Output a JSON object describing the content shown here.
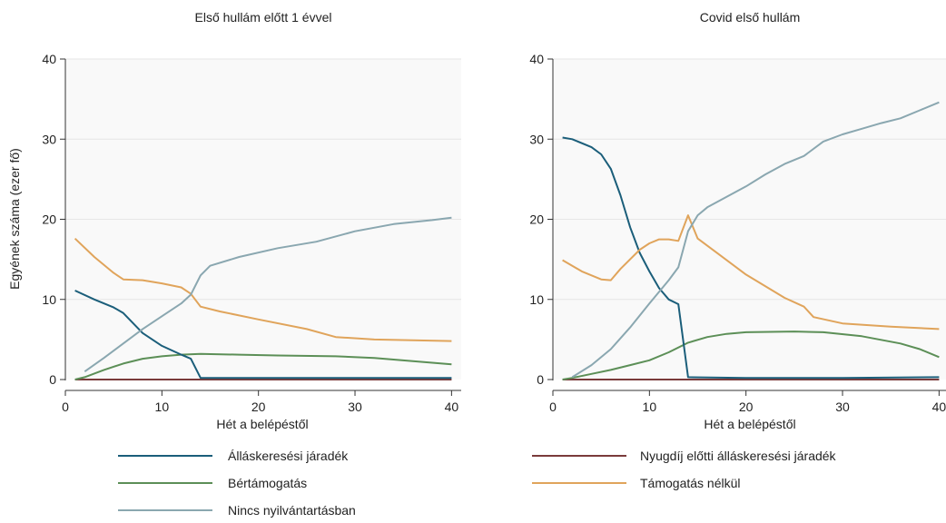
{
  "y_axis_title": "Egyének száma (ezer fő)",
  "legend": [
    {
      "key": "allaskeresesi",
      "label": "Álláskeresési járadék",
      "color": "#1b5e7a"
    },
    {
      "key": "nyugdij",
      "label": "Nyugdíj előtti álláskeresési járadék",
      "color": "#7a3b3b"
    },
    {
      "key": "bertamogatas",
      "label": "Bértámogatás",
      "color": "#5c8f57"
    },
    {
      "key": "tamogatas_nelkul",
      "label": "Támogatás nélkül",
      "color": "#e0a45b"
    },
    {
      "key": "nincs",
      "label": "Nincs nyilvántartásban",
      "color": "#8aa7b0"
    }
  ],
  "chart_data": [
    {
      "type": "line",
      "title": "Első hullám előtt 1 évvel",
      "xlabel": "Hét a belépéstől",
      "ylabel": "Egyének száma (ezer fő)",
      "xlim": [
        0,
        41
      ],
      "ylim": [
        0,
        40
      ],
      "xticks": [
        0,
        10,
        20,
        30,
        40
      ],
      "yticks": [
        0,
        10,
        20,
        30,
        40
      ],
      "grid": true,
      "series": [
        {
          "name": "Álláskeresési járadék",
          "color": "#1b5e7a",
          "x": [
            1,
            3,
            5,
            6,
            8,
            10,
            12,
            13,
            14,
            20,
            30,
            40
          ],
          "y": [
            11.1,
            10.0,
            9.0,
            8.3,
            5.8,
            4.2,
            3.1,
            2.6,
            0.2,
            0.2,
            0.2,
            0.2
          ]
        },
        {
          "name": "Nyugdíj előtti álláskeresési járadék",
          "color": "#7a3b3b",
          "x": [
            1,
            10,
            20,
            30,
            40
          ],
          "y": [
            0.0,
            0.0,
            0.0,
            0.0,
            0.0
          ]
        },
        {
          "name": "Bértámogatás",
          "color": "#5c8f57",
          "x": [
            1,
            2,
            4,
            6,
            8,
            10,
            12,
            14,
            18,
            22,
            28,
            32,
            36,
            40
          ],
          "y": [
            0.0,
            0.3,
            1.2,
            2.0,
            2.6,
            2.9,
            3.1,
            3.2,
            3.1,
            3.0,
            2.9,
            2.7,
            2.3,
            1.9
          ]
        },
        {
          "name": "Támogatás nélkül",
          "color": "#e0a45b",
          "x": [
            1,
            3,
            5,
            6,
            8,
            10,
            12,
            13,
            14,
            16,
            20,
            25,
            28,
            32,
            36,
            40
          ],
          "y": [
            17.6,
            15.3,
            13.3,
            12.5,
            12.4,
            12.0,
            11.5,
            10.7,
            9.1,
            8.5,
            7.5,
            6.3,
            5.3,
            5.0,
            4.9,
            4.8
          ]
        },
        {
          "name": "Nincs nyilvántartásban",
          "color": "#8aa7b0",
          "x": [
            2,
            4,
            6,
            8,
            10,
            12,
            13,
            14,
            15,
            18,
            22,
            26,
            30,
            34,
            38,
            40
          ],
          "y": [
            1.0,
            2.7,
            4.5,
            6.3,
            7.9,
            9.5,
            10.6,
            13.0,
            14.2,
            15.3,
            16.4,
            17.2,
            18.5,
            19.4,
            19.9,
            20.2
          ]
        }
      ]
    },
    {
      "type": "line",
      "title": "Covid első hullám",
      "xlabel": "Hét a belépéstől",
      "ylabel": "",
      "xlim": [
        0,
        41
      ],
      "ylim": [
        0,
        40
      ],
      "xticks": [
        0,
        10,
        20,
        30,
        40
      ],
      "yticks": [
        0,
        10,
        20,
        30,
        40
      ],
      "grid": true,
      "series": [
        {
          "name": "Álláskeresési járadék",
          "color": "#1b5e7a",
          "x": [
            1,
            2,
            4,
            5,
            6,
            7,
            8,
            9,
            10,
            11,
            12,
            13,
            14,
            20,
            30,
            40
          ],
          "y": [
            30.2,
            30.0,
            29.0,
            28.1,
            26.3,
            23.0,
            19.0,
            15.8,
            13.5,
            11.4,
            10.0,
            9.4,
            0.3,
            0.2,
            0.2,
            0.3
          ]
        },
        {
          "name": "Nyugdíj előtti álláskeresési járadék",
          "color": "#7a3b3b",
          "x": [
            1,
            10,
            20,
            30,
            40
          ],
          "y": [
            0.0,
            0.0,
            0.0,
            0.0,
            0.0
          ]
        },
        {
          "name": "Bértámogatás",
          "color": "#5c8f57",
          "x": [
            1,
            2,
            4,
            6,
            8,
            10,
            12,
            14,
            16,
            18,
            20,
            25,
            28,
            32,
            36,
            38,
            40
          ],
          "y": [
            0.0,
            0.2,
            0.7,
            1.2,
            1.8,
            2.4,
            3.4,
            4.6,
            5.3,
            5.7,
            5.9,
            6.0,
            5.9,
            5.4,
            4.5,
            3.8,
            2.8
          ]
        },
        {
          "name": "Támogatás nélkül",
          "color": "#e0a45b",
          "x": [
            1,
            3,
            5,
            6,
            7,
            9,
            10,
            11,
            12,
            13,
            14,
            15,
            17,
            20,
            24,
            26,
            27,
            30,
            35,
            40
          ],
          "y": [
            14.9,
            13.5,
            12.5,
            12.4,
            13.8,
            16.2,
            17.0,
            17.5,
            17.5,
            17.3,
            20.5,
            17.6,
            15.8,
            13.1,
            10.2,
            9.1,
            7.8,
            7.0,
            6.6,
            6.3
          ]
        },
        {
          "name": "Nincs nyilvántartásban",
          "color": "#8aa7b0",
          "x": [
            2,
            4,
            6,
            8,
            10,
            12,
            13,
            14,
            15,
            16,
            18,
            20,
            22,
            24,
            26,
            28,
            30,
            32,
            34,
            36,
            38,
            40
          ],
          "y": [
            0.3,
            1.8,
            3.8,
            6.5,
            9.5,
            12.4,
            14.0,
            18.5,
            20.5,
            21.5,
            22.8,
            24.1,
            25.6,
            26.9,
            27.9,
            29.7,
            30.6,
            31.3,
            32.0,
            32.6,
            33.6,
            34.6
          ]
        }
      ]
    }
  ]
}
